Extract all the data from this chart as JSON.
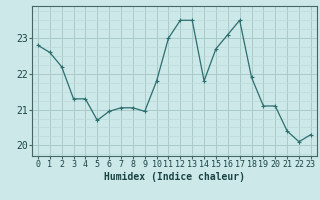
{
  "x": [
    0,
    1,
    2,
    3,
    4,
    5,
    6,
    7,
    8,
    9,
    10,
    11,
    12,
    13,
    14,
    15,
    16,
    17,
    18,
    19,
    20,
    21,
    22,
    23
  ],
  "y": [
    22.8,
    22.6,
    22.2,
    21.3,
    21.3,
    20.7,
    20.95,
    21.05,
    21.05,
    20.95,
    21.8,
    23.0,
    23.5,
    23.5,
    21.8,
    22.7,
    23.1,
    23.5,
    21.9,
    21.1,
    21.1,
    20.4,
    20.1,
    20.3
  ],
  "line_color": "#2d6e6e",
  "marker": "+",
  "marker_size": 3,
  "bg_color": "#cce8e8",
  "grid_color_major": "#aacaca",
  "grid_color_minor": "#bbdada",
  "xlabel": "Humidex (Indice chaleur)",
  "ylabel": "",
  "xlim": [
    -0.5,
    23.5
  ],
  "ylim": [
    19.7,
    23.9
  ],
  "yticks": [
    20,
    21,
    22,
    23
  ],
  "xticks": [
    0,
    1,
    2,
    3,
    4,
    5,
    6,
    7,
    8,
    9,
    10,
    11,
    12,
    13,
    14,
    15,
    16,
    17,
    18,
    19,
    20,
    21,
    22,
    23
  ],
  "xlabel_fontsize": 7,
  "tick_fontsize": 6,
  "title": ""
}
